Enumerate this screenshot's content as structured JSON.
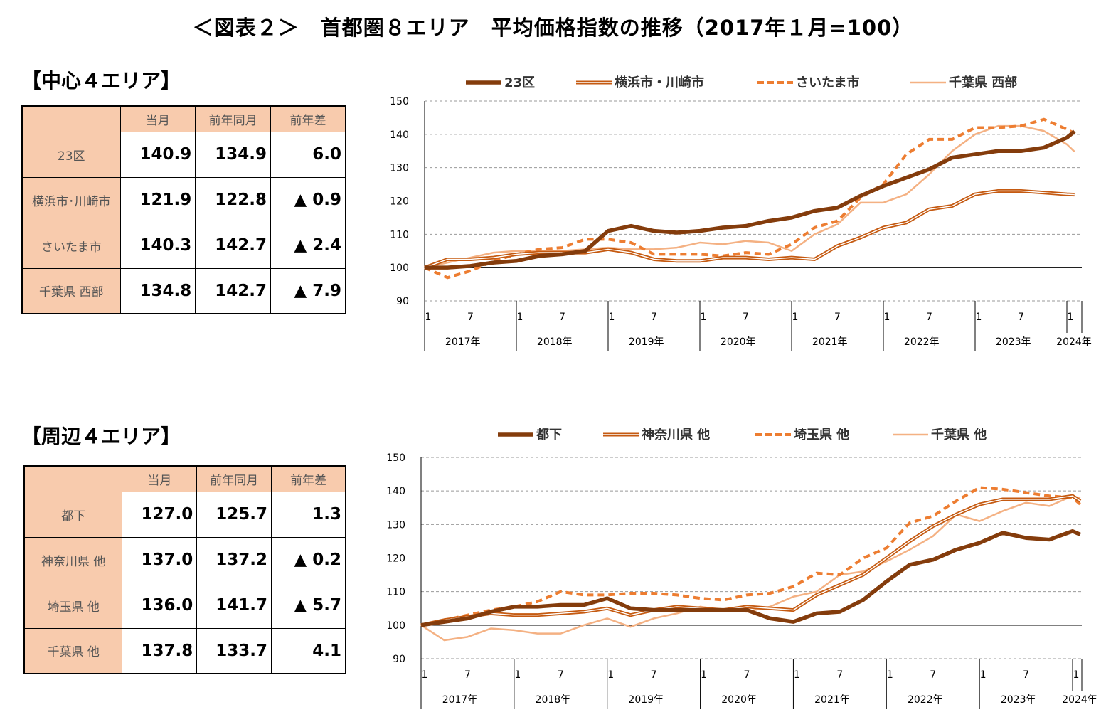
{
  "title": "＜図表２＞　首都圏８エリア　平均価格指数の推移（2017年１月=100）",
  "panels": [
    {
      "heading": "【中心４エリア】",
      "table": {
        "headers": [
          "",
          "当月",
          "前年同月",
          "前年差"
        ],
        "rows": [
          [
            "23区",
            "140.9",
            "134.9",
            "6.0"
          ],
          [
            "横浜市･川崎市",
            "121.9",
            "122.8",
            "▲ 0.9"
          ],
          [
            "さいたま市",
            "140.3",
            "142.7",
            "▲ 2.4"
          ],
          [
            "千葉県 西部",
            "134.8",
            "142.7",
            "▲ 7.9"
          ]
        ]
      }
    },
    {
      "heading": "【周辺４エリア】",
      "table": {
        "headers": [
          "",
          "当月",
          "前年同月",
          "前年差"
        ],
        "rows": [
          [
            "都下",
            "127.0",
            "125.7",
            "1.3"
          ],
          [
            "神奈川県 他",
            "137.0",
            "137.2",
            "▲ 0.2"
          ],
          [
            "埼玉県 他",
            "136.0",
            "141.7",
            "▲ 5.7"
          ],
          [
            "千葉県 他",
            "137.8",
            "133.7",
            "4.1"
          ]
        ]
      }
    }
  ],
  "chart_data": [
    {
      "type": "line",
      "ylim": [
        90,
        150
      ],
      "yticks": [
        90,
        100,
        110,
        120,
        130,
        140,
        150
      ],
      "grid": true,
      "legend": "top",
      "month_ticks": [
        "1",
        "7"
      ],
      "years": [
        "2017年",
        "2018年",
        "2019年",
        "2020年",
        "2021年",
        "2022年",
        "2023年",
        "2024年"
      ],
      "x": [
        "2017-01",
        "2017-04",
        "2017-07",
        "2017-10",
        "2018-01",
        "2018-04",
        "2018-07",
        "2018-10",
        "2019-01",
        "2019-04",
        "2019-07",
        "2019-10",
        "2020-01",
        "2020-04",
        "2020-07",
        "2020-10",
        "2021-01",
        "2021-04",
        "2021-07",
        "2021-10",
        "2022-01",
        "2022-04",
        "2022-07",
        "2022-10",
        "2023-01",
        "2023-04",
        "2023-07",
        "2023-10",
        "2024-01",
        "2024-02"
      ],
      "series": [
        {
          "name": "23区",
          "color": "#843C0C",
          "style": "thick",
          "values": [
            100,
            100,
            100.5,
            101.5,
            102,
            103.5,
            104,
            105,
            111,
            112.5,
            111,
            110.5,
            111,
            112,
            112.5,
            114,
            115,
            117,
            118,
            121.5,
            124.5,
            127,
            129.5,
            133,
            134,
            135,
            135,
            136,
            139,
            140.9
          ]
        },
        {
          "name": "横浜市・川崎市",
          "color": "#C55A11",
          "style": "double",
          "values": [
            100,
            102.5,
            102.5,
            103,
            104,
            104.5,
            104.5,
            104.5,
            105.5,
            104.5,
            102.5,
            102,
            102,
            103,
            103,
            102.5,
            103,
            102.5,
            106.5,
            109,
            112,
            113.5,
            117.5,
            118.5,
            122,
            123,
            123,
            122.5,
            122,
            121.9
          ]
        },
        {
          "name": "さいたま市",
          "color": "#ED7D31",
          "style": "dashed",
          "values": [
            100,
            97,
            99,
            102,
            104,
            105.5,
            106,
            108.5,
            108.5,
            107.5,
            104,
            104,
            104,
            103.5,
            104.5,
            104,
            107,
            112,
            114,
            121,
            125,
            134,
            138.5,
            138.5,
            142,
            142,
            142.5,
            144.5,
            141.5,
            140.3
          ]
        },
        {
          "name": "千葉県 西部",
          "color": "#F4B183",
          "style": "thin",
          "values": [
            100,
            101.5,
            103,
            104.5,
            105,
            105,
            105,
            105.5,
            106,
            105.5,
            105.5,
            106,
            107.5,
            107,
            108,
            107.5,
            105,
            110,
            113,
            119.5,
            119.5,
            122,
            128,
            135,
            140,
            142.5,
            142.5,
            141,
            137,
            134.8
          ]
        }
      ]
    },
    {
      "type": "line",
      "ylim": [
        90,
        150
      ],
      "yticks": [
        90,
        100,
        110,
        120,
        130,
        140,
        150
      ],
      "grid": true,
      "legend": "top",
      "month_ticks": [
        "1",
        "7"
      ],
      "years": [
        "2017年",
        "2018年",
        "2019年",
        "2020年",
        "2021年",
        "2022年",
        "2023年",
        "2024年"
      ],
      "x": [
        "2017-01",
        "2017-04",
        "2017-07",
        "2017-10",
        "2018-01",
        "2018-04",
        "2018-07",
        "2018-10",
        "2019-01",
        "2019-04",
        "2019-07",
        "2019-10",
        "2020-01",
        "2020-04",
        "2020-07",
        "2020-10",
        "2021-01",
        "2021-04",
        "2021-07",
        "2021-10",
        "2022-01",
        "2022-04",
        "2022-07",
        "2022-10",
        "2023-01",
        "2023-04",
        "2023-07",
        "2023-10",
        "2024-01",
        "2024-02"
      ],
      "series": [
        {
          "name": "都下",
          "color": "#843C0C",
          "style": "thick",
          "values": [
            100,
            101,
            102,
            104,
            105.5,
            105.5,
            106,
            106,
            108,
            105,
            104.5,
            104.5,
            104.5,
            104.5,
            104.5,
            102,
            101,
            103.5,
            104,
            107.5,
            113,
            118,
            119.5,
            122.5,
            124.5,
            127.5,
            126,
            125.5,
            128,
            127.0
          ]
        },
        {
          "name": "神奈川県 他",
          "color": "#C55A11",
          "style": "double",
          "values": [
            100,
            101.5,
            102.5,
            103.5,
            103,
            103,
            103.5,
            104,
            105,
            103,
            104.5,
            105.5,
            105,
            104.5,
            105.5,
            105,
            104.5,
            109,
            112,
            115,
            120,
            125,
            129.5,
            133,
            136,
            137.5,
            137.5,
            137.5,
            138.5,
            137.0
          ]
        },
        {
          "name": "埼玉県 他",
          "color": "#ED7D31",
          "style": "dashed",
          "values": [
            100,
            101.5,
            103,
            104.5,
            105.5,
            107,
            110,
            109,
            109,
            109.5,
            109.5,
            109,
            108,
            107.5,
            109,
            109.5,
            111.5,
            115.5,
            115,
            120,
            123,
            130.5,
            132.5,
            137,
            141,
            140.5,
            139.5,
            138.5,
            138,
            136.0
          ]
        },
        {
          "name": "千葉県 他",
          "color": "#F4B183",
          "style": "thin",
          "values": [
            100,
            95.5,
            96.5,
            99,
            98.5,
            97.5,
            97.5,
            100,
            102,
            99.5,
            102,
            103.5,
            105.5,
            104.5,
            104,
            105.5,
            108.5,
            110,
            115,
            116,
            119,
            122.5,
            126.5,
            133,
            131,
            134,
            136.5,
            135.5,
            138.5,
            137.8
          ]
        }
      ]
    }
  ]
}
